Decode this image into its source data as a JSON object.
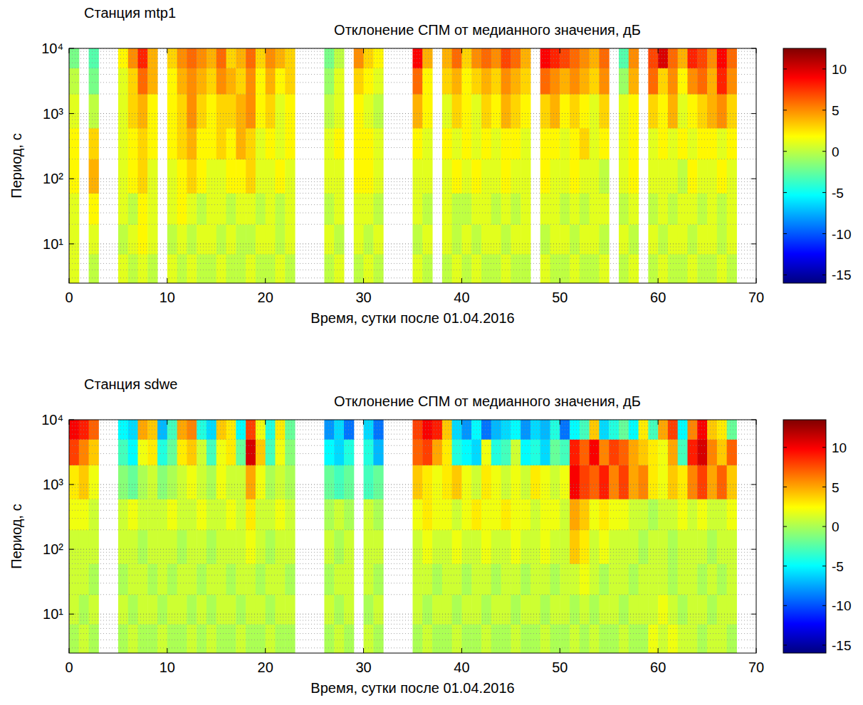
{
  "chart_data": [
    {
      "type": "heatmap",
      "subtitle": "Станция mtp1",
      "title": "Отклонение СПМ от медианного значения, дБ",
      "x_label": "Время, сутки после 01.04.2016",
      "y_label": "Период, с",
      "log": "y",
      "grid": true,
      "xlim": [
        0,
        70
      ],
      "xticks": [
        0,
        10,
        20,
        30,
        40,
        50,
        60,
        70
      ],
      "ylim": [
        2.5,
        10000
      ],
      "yticks": [
        {
          "value": 10,
          "label": "10¹"
        },
        {
          "value": 100,
          "label": "10²"
        },
        {
          "value": 1000,
          "label": "10³"
        },
        {
          "value": 10000,
          "label": "10⁴"
        }
      ],
      "yminor": [
        3,
        4,
        5,
        6,
        7,
        8,
        9,
        20,
        30,
        40,
        50,
        60,
        70,
        80,
        90,
        200,
        300,
        400,
        500,
        600,
        700,
        800,
        900,
        2000,
        3000,
        4000,
        5000,
        6000,
        7000,
        8000,
        9000
      ],
      "x": [
        0,
        1,
        2,
        3,
        4,
        5,
        6,
        7,
        8,
        9,
        10,
        11,
        12,
        13,
        14,
        15,
        16,
        17,
        18,
        19,
        20,
        21,
        22,
        23,
        24,
        25,
        26,
        27,
        28,
        29,
        30,
        31,
        32,
        33,
        34,
        35,
        36,
        37,
        38,
        39,
        40,
        41,
        42,
        43,
        44,
        45,
        46,
        47,
        48,
        49,
        50,
        51,
        52,
        53,
        54,
        55,
        56,
        57,
        58,
        59,
        60,
        61,
        62,
        63,
        64,
        65,
        66,
        67,
        68
      ],
      "y": [
        2.5,
        7,
        20,
        60,
        200,
        600,
        2000,
        5000,
        10000
      ],
      "colorbar": {
        "range": [
          -16,
          12.5
        ],
        "ticks": [
          -15,
          -10,
          -5,
          0,
          5,
          10
        ]
      },
      "cells": [
        [
          1,
          null,
          0,
          null,
          null,
          1,
          0,
          1,
          0,
          null,
          1,
          0,
          1,
          0,
          0,
          1,
          0,
          0,
          1,
          0,
          0,
          1,
          0,
          null,
          null,
          null,
          0,
          1,
          null,
          0,
          1,
          0,
          null,
          null,
          null,
          1,
          0,
          null,
          0,
          1,
          0,
          1,
          0,
          0,
          1,
          0,
          0,
          null,
          1,
          0,
          0,
          1,
          0,
          0,
          1,
          null,
          0,
          1,
          null,
          0,
          1,
          0,
          0,
          1,
          0,
          0,
          1,
          0
        ],
        [
          1,
          null,
          1,
          null,
          null,
          0,
          1,
          2,
          1,
          null,
          0,
          1,
          0,
          1,
          1,
          0,
          1,
          0,
          0,
          1,
          1,
          0,
          1,
          null,
          null,
          null,
          1,
          0,
          null,
          1,
          0,
          1,
          null,
          null,
          null,
          0,
          1,
          null,
          1,
          0,
          1,
          0,
          1,
          1,
          0,
          1,
          1,
          null,
          0,
          1,
          1,
          0,
          1,
          1,
          0,
          null,
          1,
          0,
          null,
          1,
          0,
          1,
          1,
          0,
          1,
          1,
          0,
          1
        ],
        [
          1,
          null,
          2,
          null,
          null,
          1,
          0,
          2,
          1,
          null,
          1,
          2,
          1,
          0,
          1,
          1,
          0,
          1,
          1,
          0,
          1,
          0,
          1,
          null,
          null,
          null,
          0,
          1,
          null,
          1,
          1,
          0,
          null,
          null,
          null,
          1,
          0,
          null,
          1,
          0,
          0,
          1,
          1,
          0,
          1,
          0,
          1,
          null,
          1,
          1,
          0,
          1,
          0,
          1,
          1,
          null,
          0,
          1,
          null,
          0,
          1,
          0,
          1,
          1,
          0,
          1,
          0,
          1
        ],
        [
          2,
          null,
          4,
          null,
          null,
          1,
          2,
          3,
          1,
          null,
          1,
          2,
          3,
          2,
          1,
          1,
          2,
          2,
          3,
          1,
          1,
          2,
          1,
          null,
          null,
          null,
          1,
          1,
          null,
          2,
          2,
          1,
          null,
          null,
          null,
          1,
          1,
          null,
          1,
          2,
          1,
          2,
          1,
          1,
          2,
          1,
          1,
          null,
          2,
          1,
          1,
          2,
          1,
          1,
          0,
          null,
          1,
          2,
          null,
          1,
          1,
          1,
          0,
          2,
          1,
          1,
          2,
          1
        ],
        [
          2,
          null,
          3,
          null,
          null,
          1,
          2,
          3,
          2,
          null,
          2,
          3,
          4,
          2,
          2,
          3,
          2,
          4,
          3,
          1,
          2,
          1,
          2,
          null,
          null,
          null,
          1,
          2,
          null,
          2,
          2,
          1,
          null,
          null,
          null,
          2,
          1,
          null,
          2,
          1,
          2,
          1,
          2,
          1,
          2,
          2,
          1,
          null,
          2,
          2,
          1,
          2,
          3,
          1,
          2,
          null,
          1,
          2,
          null,
          1,
          2,
          1,
          2,
          1,
          2,
          2,
          1,
          2
        ],
        [
          1,
          null,
          0,
          null,
          null,
          1,
          3,
          4,
          2,
          null,
          2,
          3,
          5,
          3,
          2,
          3,
          3,
          4,
          5,
          2,
          3,
          1,
          2,
          null,
          null,
          null,
          0,
          1,
          null,
          2,
          1,
          0,
          null,
          null,
          null,
          4,
          2,
          null,
          1,
          3,
          2,
          1,
          3,
          2,
          4,
          3,
          2,
          null,
          3,
          4,
          2,
          3,
          2,
          1,
          3,
          null,
          1,
          2,
          null,
          3,
          2,
          4,
          1,
          2,
          3,
          4,
          5,
          3
        ],
        [
          0,
          null,
          -2,
          null,
          null,
          1,
          3,
          6,
          4,
          null,
          2,
          4,
          5,
          4,
          3,
          5,
          4,
          3,
          5,
          2,
          4,
          2,
          3,
          null,
          null,
          null,
          -1,
          1,
          null,
          3,
          2,
          1,
          null,
          null,
          null,
          6,
          2,
          null,
          3,
          4,
          2,
          3,
          4,
          3,
          5,
          4,
          3,
          null,
          6,
          5,
          4,
          5,
          4,
          3,
          5,
          null,
          -1,
          4,
          null,
          6,
          3,
          5,
          2,
          5,
          6,
          4,
          8,
          5
        ],
        [
          -2,
          null,
          -3,
          null,
          null,
          2,
          5,
          8,
          4,
          null,
          3,
          5,
          6,
          5,
          4,
          6,
          3,
          4,
          6,
          3,
          5,
          4,
          3,
          null,
          null,
          null,
          -2,
          0,
          null,
          5,
          3,
          2,
          null,
          null,
          null,
          9,
          4,
          null,
          4,
          6,
          3,
          5,
          6,
          5,
          7,
          6,
          4,
          null,
          9,
          8,
          7,
          6,
          5,
          4,
          6,
          null,
          -3,
          5,
          null,
          7,
          10,
          6,
          4,
          8,
          7,
          5,
          9,
          6
        ]
      ]
    },
    {
      "type": "heatmap",
      "subtitle": "Станция sdwe",
      "title": "Отклонение СПМ от медианного значения, дБ",
      "x_label": "Время, сутки после 01.04.2016",
      "y_label": "Период, с",
      "log": "y",
      "grid": true,
      "xlim": [
        0,
        70
      ],
      "xticks": [
        0,
        10,
        20,
        30,
        40,
        50,
        60,
        70
      ],
      "ylim": [
        2.5,
        10000
      ],
      "yticks": [
        {
          "value": 10,
          "label": "10¹"
        },
        {
          "value": 100,
          "label": "10²"
        },
        {
          "value": 1000,
          "label": "10³"
        },
        {
          "value": 10000,
          "label": "10⁴"
        }
      ],
      "yminor": [
        3,
        4,
        5,
        6,
        7,
        8,
        9,
        20,
        30,
        40,
        50,
        60,
        70,
        80,
        90,
        200,
        300,
        400,
        500,
        600,
        700,
        800,
        900,
        2000,
        3000,
        4000,
        5000,
        6000,
        7000,
        8000,
        9000
      ],
      "x": [
        0,
        1,
        2,
        3,
        4,
        5,
        6,
        7,
        8,
        9,
        10,
        11,
        12,
        13,
        14,
        15,
        16,
        17,
        18,
        19,
        20,
        21,
        22,
        23,
        24,
        25,
        26,
        27,
        28,
        29,
        30,
        31,
        32,
        33,
        34,
        35,
        36,
        37,
        38,
        39,
        40,
        41,
        42,
        43,
        44,
        45,
        46,
        47,
        48,
        49,
        50,
        51,
        52,
        53,
        54,
        55,
        56,
        57,
        58,
        59,
        60,
        61,
        62,
        63,
        64,
        65,
        66,
        67,
        68
      ],
      "y": [
        2.5,
        7,
        20,
        60,
        200,
        600,
        2000,
        5000,
        10000
      ],
      "colorbar": {
        "range": [
          -16,
          13.5
        ],
        "ticks": [
          -15,
          -10,
          -5,
          0,
          5,
          10
        ]
      },
      "cells": [
        [
          0,
          1,
          0,
          null,
          null,
          0,
          1,
          0,
          0,
          1,
          0,
          0,
          1,
          0,
          1,
          0,
          0,
          1,
          0,
          0,
          1,
          0,
          0,
          null,
          null,
          null,
          0,
          1,
          0,
          null,
          1,
          0,
          null,
          null,
          null,
          0,
          1,
          0,
          0,
          1,
          0,
          0,
          1,
          0,
          0,
          1,
          0,
          0,
          1,
          0,
          0,
          1,
          0,
          1,
          0,
          0,
          1,
          0,
          0,
          2,
          1,
          2,
          1,
          1,
          0,
          1,
          1,
          0
        ],
        [
          1,
          0,
          1,
          null,
          null,
          1,
          0,
          1,
          1,
          0,
          1,
          1,
          0,
          1,
          0,
          1,
          1,
          0,
          1,
          1,
          0,
          1,
          1,
          null,
          null,
          null,
          1,
          0,
          1,
          null,
          0,
          1,
          null,
          null,
          null,
          1,
          0,
          1,
          1,
          0,
          1,
          1,
          0,
          1,
          1,
          0,
          1,
          1,
          0,
          1,
          1,
          0,
          1,
          0,
          1,
          1,
          0,
          1,
          1,
          1,
          2,
          1,
          0,
          1,
          1,
          0,
          1,
          1
        ],
        [
          1,
          1,
          0,
          null,
          null,
          0,
          1,
          1,
          0,
          1,
          0,
          1,
          1,
          0,
          1,
          1,
          0,
          1,
          1,
          0,
          1,
          1,
          0,
          null,
          null,
          null,
          0,
          1,
          1,
          null,
          1,
          0,
          null,
          null,
          null,
          1,
          1,
          0,
          1,
          1,
          0,
          1,
          1,
          0,
          1,
          1,
          0,
          1,
          1,
          0,
          1,
          1,
          2,
          1,
          0,
          1,
          1,
          0,
          1,
          1,
          1,
          0,
          1,
          1,
          0,
          1,
          0,
          1
        ],
        [
          1,
          1,
          1,
          null,
          null,
          1,
          1,
          0,
          1,
          1,
          1,
          0,
          1,
          1,
          0,
          1,
          1,
          1,
          2,
          1,
          0,
          1,
          1,
          null,
          null,
          null,
          1,
          0,
          1,
          null,
          1,
          1,
          null,
          null,
          null,
          1,
          2,
          1,
          1,
          2,
          1,
          1,
          2,
          1,
          1,
          2,
          1,
          1,
          2,
          1,
          1,
          4,
          3,
          1,
          2,
          1,
          1,
          1,
          0,
          1,
          1,
          0,
          1,
          1,
          1,
          0,
          1,
          1
        ],
        [
          2,
          2,
          1,
          null,
          null,
          1,
          2,
          1,
          1,
          1,
          2,
          1,
          1,
          2,
          1,
          1,
          2,
          1,
          3,
          1,
          1,
          2,
          1,
          null,
          null,
          null,
          0,
          1,
          0,
          null,
          1,
          0,
          null,
          null,
          null,
          2,
          3,
          2,
          2,
          1,
          2,
          3,
          2,
          2,
          3,
          2,
          2,
          1,
          2,
          2,
          1,
          5,
          4,
          2,
          3,
          2,
          2,
          1,
          1,
          0,
          1,
          1,
          2,
          1,
          2,
          1,
          1,
          2
        ],
        [
          3,
          4,
          2,
          null,
          null,
          -1,
          -2,
          0,
          1,
          -1,
          0,
          1,
          2,
          1,
          0,
          2,
          1,
          1,
          5,
          2,
          0,
          1,
          0,
          null,
          null,
          null,
          -2,
          -3,
          -2,
          null,
          -3,
          -2,
          null,
          null,
          null,
          4,
          3,
          2,
          3,
          4,
          2,
          1,
          3,
          2,
          1,
          2,
          1,
          3,
          2,
          1,
          2,
          10,
          8,
          7,
          9,
          6,
          8,
          5,
          6,
          3,
          2,
          4,
          3,
          6,
          8,
          5,
          7,
          4
        ],
        [
          8,
          6,
          4,
          null,
          null,
          -3,
          -5,
          2,
          3,
          -4,
          -2,
          3,
          4,
          1,
          -3,
          2,
          3,
          -2,
          11,
          4,
          -3,
          2,
          -1,
          null,
          null,
          null,
          -5,
          -6,
          -4,
          null,
          -4,
          -7,
          null,
          null,
          null,
          7,
          8,
          5,
          3,
          -4,
          -5,
          -6,
          2,
          -4,
          -3,
          1,
          -5,
          -4,
          -6,
          -2,
          -3,
          9,
          7,
          10,
          6,
          8,
          7,
          5,
          4,
          3,
          2,
          5,
          -3,
          9,
          11,
          6,
          4,
          7
        ],
        [
          10,
          9,
          7,
          null,
          null,
          -5,
          -6,
          5,
          4,
          -7,
          -3,
          5,
          6,
          -4,
          -6,
          4,
          3,
          -5,
          8,
          2,
          -4,
          3,
          -2,
          null,
          null,
          null,
          -8,
          -6,
          -9,
          null,
          -6,
          -9,
          null,
          null,
          null,
          8,
          10,
          9,
          4,
          -6,
          -8,
          -5,
          -9,
          -7,
          -6,
          -5,
          -8,
          -6,
          -7,
          -4,
          -9,
          -5,
          -3,
          4,
          -6,
          -4,
          -2,
          -5,
          3,
          -3,
          5,
          8,
          -5,
          6,
          10,
          4,
          3,
          -2
        ]
      ]
    }
  ]
}
